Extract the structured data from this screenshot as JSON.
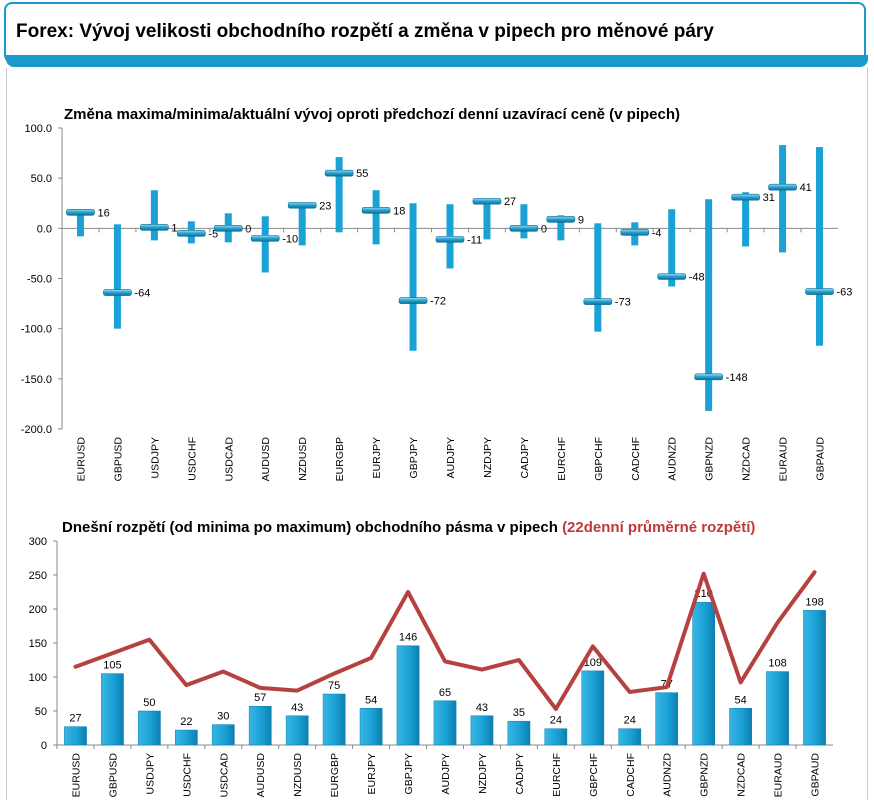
{
  "header": {
    "title": "Forex: Vývoj velikosti obchodního rozpětí a změna v pipech pro měnové páry"
  },
  "colors": {
    "accent": "#1a9ac9",
    "bar": "#1aa1d6",
    "line": "#b5423f"
  },
  "chart_data": [
    {
      "type": "range",
      "title": "Změna maxima/minima/aktuální vývoj oproti předchozí denní uzavírací ceně (v pipech)",
      "categories": [
        "EURUSD",
        "GBPUSD",
        "USDJPY",
        "USDCHF",
        "USDCAD",
        "AUDUSD",
        "NZDUSD",
        "EURGBP",
        "EURJPY",
        "GBPJPY",
        "AUDJPY",
        "NZDJPY",
        "CADJPY",
        "EURCHF",
        "GBPCHF",
        "CADCHF",
        "AUDNZD",
        "GBPNZD",
        "NZDCAD",
        "EURAUD",
        "GBPAUD"
      ],
      "high": [
        17,
        4,
        38,
        7,
        15,
        12,
        24,
        71,
        38,
        25,
        24,
        30,
        24,
        13,
        5,
        6,
        19,
        29,
        36,
        83,
        81
      ],
      "low": [
        -8,
        -100,
        -12,
        -15,
        -14,
        -44,
        -17,
        -4,
        -16,
        -122,
        -40,
        -11,
        -10,
        -12,
        -103,
        -17,
        -58,
        -182,
        -18,
        -24,
        -117
      ],
      "current": [
        16,
        -64,
        1,
        -5,
        0,
        -10,
        23,
        55,
        18,
        -72,
        -11,
        27,
        0,
        9,
        -73,
        -4,
        -48,
        -148,
        31,
        41,
        -63
      ],
      "value_labels": [
        "16",
        "-64",
        "1",
        "-5",
        "0",
        "-10",
        "23",
        "55",
        "18",
        "-72",
        "-11",
        "27",
        "0",
        "9",
        "-73",
        "-4",
        "-48",
        "-148",
        "31",
        "41",
        "-63"
      ],
      "ylim": [
        -200,
        100
      ],
      "yticks": [
        "100.0",
        "50.0",
        "0.0",
        "-50.0",
        "-100.0",
        "-150.0",
        "-200.0"
      ],
      "grid": false
    },
    {
      "type": "bar",
      "title": "Dnešní rozpětí (od minima po maximum) obchodního pásma v pipech",
      "title_accent": "(22denní průměrné rozpětí)",
      "categories": [
        "EURUSD",
        "GBPUSD",
        "USDJPY",
        "USDCHF",
        "USDCAD",
        "AUDUSD",
        "NZDUSD",
        "EURGBP",
        "EURJPY",
        "GBPJPY",
        "AUDJPY",
        "NZDJPY",
        "CADJPY",
        "EURCHF",
        "GBPCHF",
        "CADCHF",
        "AUDNZD",
        "GBPNZD",
        "NZDCAD",
        "EURAUD",
        "GBPAUD"
      ],
      "series": [
        {
          "values": [
            27,
            105,
            50,
            22,
            30,
            57,
            43,
            75,
            54,
            146,
            65,
            43,
            35,
            24,
            109,
            24,
            77,
            210,
            54,
            108,
            198
          ]
        },
        {
          "values": [
            115,
            135,
            155,
            88,
            108,
            84,
            80,
            105,
            128,
            225,
            123,
            111,
            125,
            53,
            145,
            78,
            85,
            252,
            92,
            180,
            254
          ]
        }
      ],
      "value_labels": [
        "27",
        "105",
        "50",
        "22",
        "30",
        "57",
        "43",
        "75",
        "54",
        "146",
        "65",
        "43",
        "35",
        "24",
        "109",
        "24",
        "77",
        "210",
        "54",
        "108",
        "198"
      ],
      "ylim": [
        0,
        300
      ],
      "yticks": [
        "300",
        "250",
        "200",
        "150",
        "100",
        "50",
        "0"
      ],
      "grid": false
    }
  ]
}
